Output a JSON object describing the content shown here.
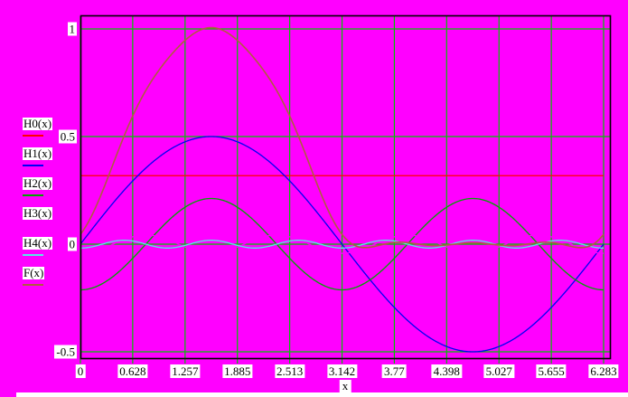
{
  "window": {
    "background_color": "#ff00ff",
    "grid_color": "#00c400",
    "border_color": "#000000",
    "tick_box_color": "#ffffff"
  },
  "chart_data": {
    "type": "line",
    "title": "",
    "xlabel": "x",
    "ylabel": "",
    "grid": true,
    "legend_position": "left",
    "x_axis": {
      "label": "x",
      "range": [
        0,
        6.283
      ],
      "ticks": [
        {
          "value": 0,
          "label": "0"
        },
        {
          "value": 0.628,
          "label": "0.628"
        },
        {
          "value": 1.257,
          "label": "1.257"
        },
        {
          "value": 1.885,
          "label": "1.885"
        },
        {
          "value": 2.513,
          "label": "2.513"
        },
        {
          "value": 3.142,
          "label": "3.142"
        },
        {
          "value": 3.77,
          "label": "3.77"
        },
        {
          "value": 4.398,
          "label": "4.398"
        },
        {
          "value": 5.027,
          "label": "5.027"
        },
        {
          "value": 5.655,
          "label": "5.655"
        },
        {
          "value": 6.283,
          "label": "6.283"
        }
      ]
    },
    "y_axis": {
      "range": [
        -0.5,
        1
      ],
      "ticks": [
        {
          "value": 1,
          "label": "1"
        },
        {
          "value": 0.5,
          "label": "0.5"
        },
        {
          "value": 0,
          "label": "0"
        },
        {
          "value": -0.5,
          "label": "-0.5"
        }
      ]
    },
    "series": [
      {
        "name": "H0(x)",
        "color": "#ff0000",
        "width": 1.3,
        "formula": {
          "type": "const",
          "a": 0.3183
        }
      },
      {
        "name": "H1(x)",
        "color": "#0000f5",
        "width": 1.3,
        "formula": {
          "type": "sin",
          "a": 0.5,
          "f": 1
        }
      },
      {
        "name": "H2(x)",
        "color": "#00a400",
        "width": 1.3,
        "formula": {
          "type": "cos",
          "a": -0.2122,
          "f": 2
        }
      },
      {
        "name": "H3(x)",
        "color": "#ff00ff",
        "width": 1.3,
        "formula": {
          "type": "cos",
          "a": -0.0424,
          "f": 4
        }
      },
      {
        "name": "H4(x)",
        "color": "#55e8e8",
        "width": 1.3,
        "formula": {
          "type": "cos",
          "a": -0.0182,
          "f": 6
        }
      },
      {
        "name": "F(x)",
        "color": "#b05c42",
        "width": 1.6,
        "formula": {
          "type": "sum"
        }
      }
    ]
  }
}
